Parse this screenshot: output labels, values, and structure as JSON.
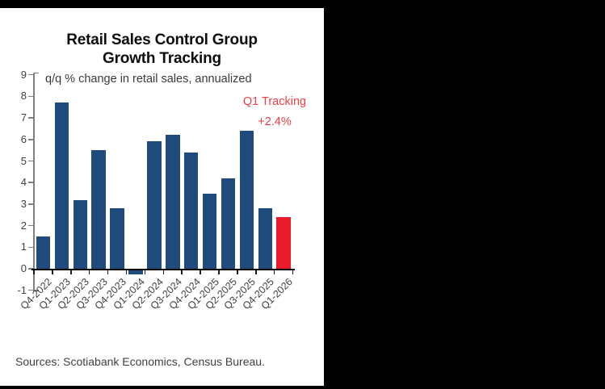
{
  "background": "#000000",
  "panel_color": "#ffffff",
  "chart_data": {
    "type": "bar",
    "title_lines": [
      "Retail Sales Control Group",
      "Growth Tracking"
    ],
    "subtitle": "q/q % change in retail sales, annualized",
    "annotation": {
      "lines": [
        "Q1 Tracking",
        "+2.4%"
      ],
      "color": "#f03e46"
    },
    "categories": [
      "Q4-2022",
      "Q1-2023",
      "Q2-2023",
      "Q3-2023",
      "Q4-2023",
      "Q1-2024",
      "Q2-2024",
      "Q3-2024",
      "Q4-2024",
      "Q1-2025",
      "Q2-2025",
      "Q3-2025",
      "Q4-2025",
      "Q1-2026"
    ],
    "values": [
      1.5,
      7.7,
      3.2,
      5.5,
      2.8,
      -0.2,
      5.9,
      6.2,
      5.4,
      3.5,
      4.2,
      6.4,
      2.8,
      2.4
    ],
    "highlight_index": 13,
    "bar_color": "#1f4b7d",
    "highlight_color": "#ea1a2b",
    "y_ticks": [
      9,
      8,
      7,
      6,
      5,
      4,
      3,
      2,
      1,
      0,
      -1
    ],
    "ylim": [
      -1,
      9
    ],
    "grid": false,
    "legend": "none",
    "source": "Sources: Scotiabank Economics, Census Bureau."
  }
}
